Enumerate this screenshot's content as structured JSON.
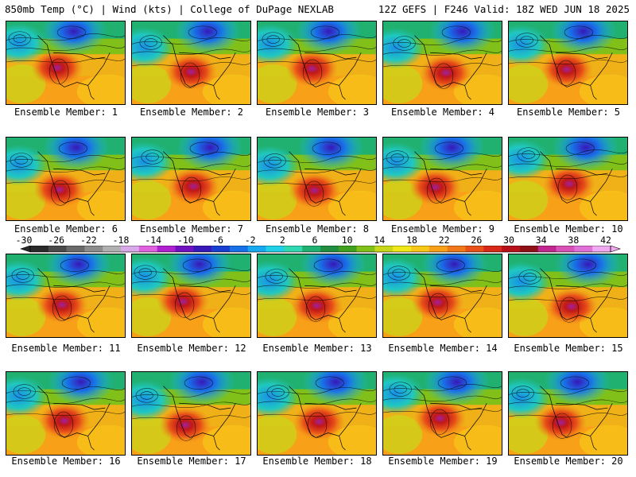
{
  "header": {
    "left_title": "850mb Temp (°C) | Wind (kts) | College of DuPage NEXLAB",
    "right_title": "12Z GEFS | F246 Valid: 18Z WED JUN 18 2025"
  },
  "panels": [
    {
      "label": "Ensemble Member: 1"
    },
    {
      "label": "Ensemble Member: 2"
    },
    {
      "label": "Ensemble Member: 3"
    },
    {
      "label": "Ensemble Member: 4"
    },
    {
      "label": "Ensemble Member: 5"
    },
    {
      "label": "Ensemble Member: 6"
    },
    {
      "label": "Ensemble Member: 7"
    },
    {
      "label": "Ensemble Member: 8"
    },
    {
      "label": "Ensemble Member: 9"
    },
    {
      "label": "Ensemble Member: 10"
    },
    {
      "label": "Ensemble Member: 11"
    },
    {
      "label": "Ensemble Member: 12"
    },
    {
      "label": "Ensemble Member: 13"
    },
    {
      "label": "Ensemble Member: 14"
    },
    {
      "label": "Ensemble Member: 15"
    },
    {
      "label": "Ensemble Member: 16"
    },
    {
      "label": "Ensemble Member: 17"
    },
    {
      "label": "Ensemble Member: 18"
    },
    {
      "label": "Ensemble Member: 19"
    },
    {
      "label": "Ensemble Member: 20"
    }
  ],
  "colorbar": {
    "ticks": [
      "-30",
      "-26",
      "-22",
      "-18",
      "-14",
      "-10",
      "-6",
      "-2",
      "2",
      "6",
      "10",
      "14",
      "18",
      "22",
      "26",
      "30",
      "34",
      "38",
      "42"
    ],
    "colors": [
      "#2a2a2a",
      "#4a4a4a",
      "#6a6a6a",
      "#8c8c8c",
      "#b0b0b0",
      "#d8a8e8",
      "#e060e0",
      "#b020d0",
      "#7010c0",
      "#3818b8",
      "#1840d0",
      "#1870e8",
      "#18a8f0",
      "#20d0e8",
      "#30d8b0",
      "#20b070",
      "#209040",
      "#40a020",
      "#80c018",
      "#c8d818",
      "#f0e818",
      "#f8c818",
      "#f8a018",
      "#f07818",
      "#e85018",
      "#d82818",
      "#b81018",
      "#901018",
      "#c02890",
      "#d850b8",
      "#e070d8",
      "#f0a8f0"
    ]
  }
}
